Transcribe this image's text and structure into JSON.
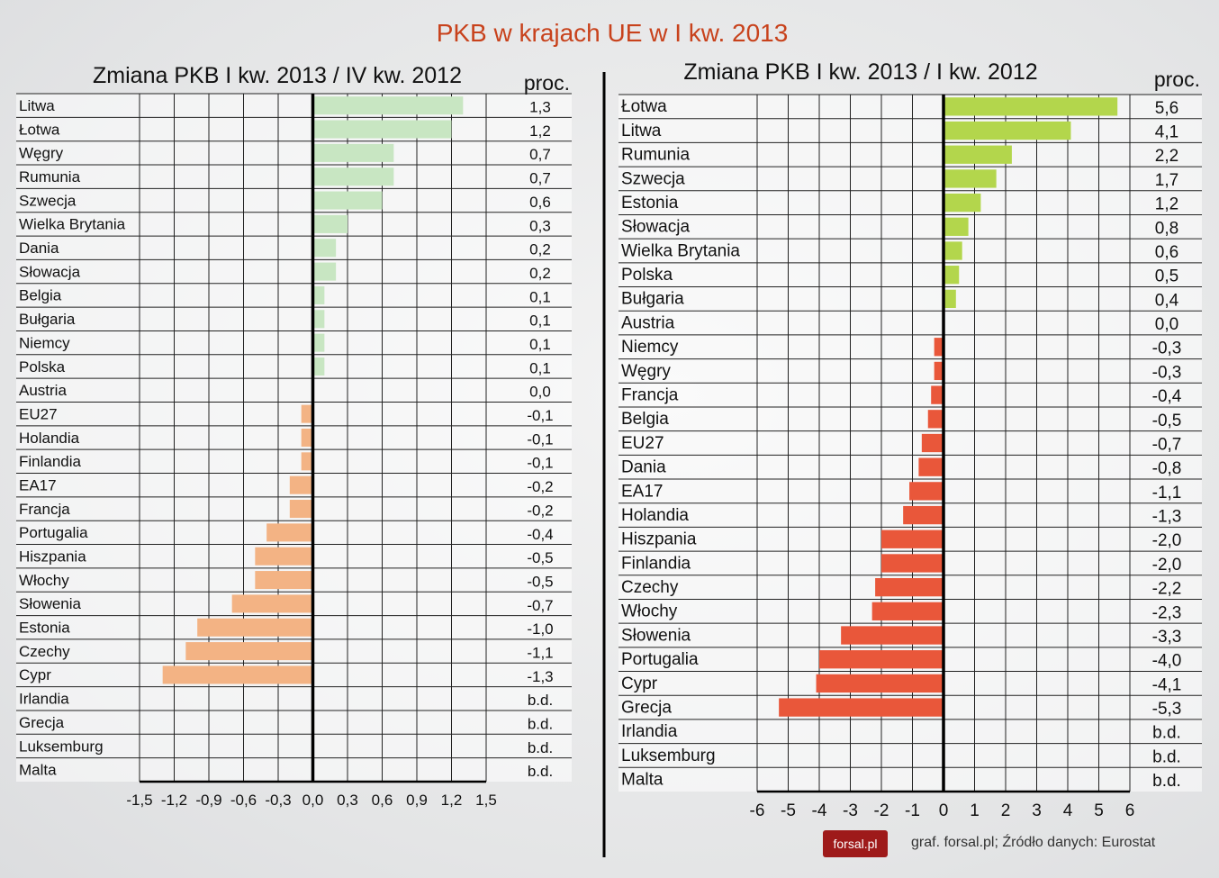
{
  "title": "PKB w krajach UE w I kw. 2013",
  "footer": {
    "logo_text": "forsal.pl",
    "source": "graf. forsal.pl; Źródło danych: Eurostat"
  },
  "colors": {
    "title": "#c8421c",
    "left_positive": "#c8e6c2",
    "left_negative": "#f3b384",
    "right_positive": "#b3d64c",
    "right_negative": "#e9573a",
    "logo_bg": "#9e1a1a"
  },
  "chart_data": [
    {
      "type": "bar",
      "orientation": "horizontal",
      "title": "Zmiana PKB I kw. 2013 / IV kw. 2012",
      "value_header": "proc.",
      "xlim": [
        -1.5,
        1.5
      ],
      "xticks": [
        "-1,5",
        "-1,2",
        "-0,9",
        "-0,6",
        "-0,3",
        "0,0",
        "0,3",
        "0,6",
        "0,9",
        "1,2",
        "1,5"
      ],
      "xtick_values": [
        -1.5,
        -1.2,
        -0.9,
        -0.6,
        -0.3,
        0,
        0.3,
        0.6,
        0.9,
        1.2,
        1.5
      ],
      "grid": true,
      "categories": [
        "Litwa",
        "Łotwa",
        "Węgry",
        "Rumunia",
        "Szwecja",
        "Wielka Brytania",
        "Dania",
        "Słowacja",
        "Belgia",
        "Bułgaria",
        "Niemcy",
        "Polska",
        "Austria",
        "EU27",
        "Holandia",
        "Finlandia",
        "EA17",
        "Francja",
        "Portugalia",
        "Hiszpania",
        "Włochy",
        "Słowenia",
        "Estonia",
        "Czechy",
        "Cypr",
        "Irlandia",
        "Grecja",
        "Luksemburg",
        "Malta"
      ],
      "values": [
        1.3,
        1.2,
        0.7,
        0.7,
        0.6,
        0.3,
        0.2,
        0.2,
        0.1,
        0.1,
        0.1,
        0.1,
        0.0,
        -0.1,
        -0.1,
        -0.1,
        -0.2,
        -0.2,
        -0.4,
        -0.5,
        -0.5,
        -0.7,
        -1.0,
        -1.1,
        -1.3,
        null,
        null,
        null,
        null
      ],
      "labels": [
        "1,3",
        "1,2",
        "0,7",
        "0,7",
        "0,6",
        "0,3",
        "0,2",
        "0,2",
        "0,1",
        "0,1",
        "0,1",
        "0,1",
        "0,0",
        "-0,1",
        "-0,1",
        "-0,1",
        "-0,2",
        "-0,2",
        "-0,4",
        "-0,5",
        "-0,5",
        "-0,7",
        "-1,0",
        "-1,1",
        "-1,3",
        "b.d.",
        "b.d.",
        "b.d.",
        "b.d."
      ]
    },
    {
      "type": "bar",
      "orientation": "horizontal",
      "title": "Zmiana PKB I kw. 2013 / I kw. 2012",
      "value_header": "proc.",
      "xlim": [
        -6,
        6
      ],
      "xticks": [
        "-6",
        "-5",
        "-4",
        "-3",
        "-2",
        "-1",
        "0",
        "1",
        "2",
        "3",
        "4",
        "5",
        "6"
      ],
      "xtick_values": [
        -6,
        -5,
        -4,
        -3,
        -2,
        -1,
        0,
        1,
        2,
        3,
        4,
        5,
        6
      ],
      "grid": true,
      "categories": [
        "Łotwa",
        "Litwa",
        "Rumunia",
        "Szwecja",
        "Estonia",
        "Słowacja",
        "Wielka Brytania",
        "Polska",
        "Bułgaria",
        "Austria",
        "Niemcy",
        "Węgry",
        "Francja",
        "Belgia",
        "EU27",
        "Dania",
        "EA17",
        "Holandia",
        "Hiszpania",
        "Finlandia",
        "Czechy",
        "Włochy",
        "Słowenia",
        "Portugalia",
        "Cypr",
        "Grecja",
        "Irlandia",
        "Luksemburg",
        "Malta"
      ],
      "values": [
        5.6,
        4.1,
        2.2,
        1.7,
        1.2,
        0.8,
        0.6,
        0.5,
        0.4,
        0.0,
        -0.3,
        -0.3,
        -0.4,
        -0.5,
        -0.7,
        -0.8,
        -1.1,
        -1.3,
        -2.0,
        -2.0,
        -2.2,
        -2.3,
        -3.3,
        -4.0,
        -4.1,
        -5.3,
        null,
        null,
        null
      ],
      "labels": [
        "5,6",
        "4,1",
        "2,2",
        "1,7",
        "1,2",
        "0,8",
        "0,6",
        "0,5",
        "0,4",
        "0,0",
        "-0,3",
        "-0,3",
        "-0,4",
        "-0,5",
        "-0,7",
        "-0,8",
        "-1,1",
        "-1,3",
        "-2,0",
        "-2,0",
        "-2,2",
        "-2,3",
        "-3,3",
        "-4,0",
        "-4,1",
        "-5,3",
        "b.d.",
        "b.d.",
        "b.d."
      ]
    }
  ]
}
